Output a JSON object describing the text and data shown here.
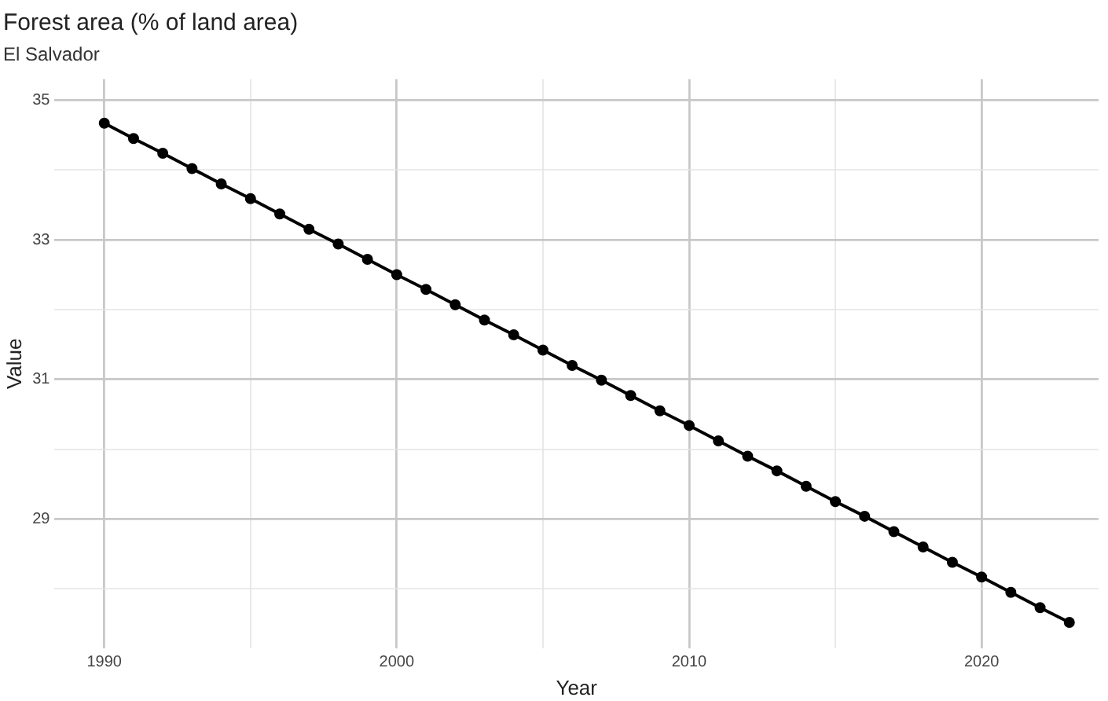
{
  "chart_data": {
    "type": "line",
    "title": "Forest area (% of land area)",
    "subtitle": "El Salvador",
    "xlabel": "Year",
    "ylabel": "Value",
    "x": [
      1990,
      1991,
      1992,
      1993,
      1994,
      1995,
      1996,
      1997,
      1998,
      1999,
      2000,
      2001,
      2002,
      2003,
      2004,
      2005,
      2006,
      2007,
      2008,
      2009,
      2010,
      2011,
      2012,
      2013,
      2014,
      2015,
      2016,
      2017,
      2018,
      2019,
      2020,
      2021,
      2022,
      2023
    ],
    "series": [
      {
        "color": "#000000",
        "values": [
          34.67,
          34.45,
          34.24,
          34.02,
          33.8,
          33.59,
          33.37,
          33.15,
          32.94,
          32.72,
          32.5,
          32.29,
          32.07,
          31.85,
          31.64,
          31.42,
          31.2,
          30.99,
          30.77,
          30.55,
          30.34,
          30.12,
          29.9,
          29.69,
          29.47,
          29.25,
          29.04,
          28.82,
          28.6,
          28.38,
          28.17,
          27.95,
          27.73,
          27.52
        ]
      }
    ],
    "xlim": [
      1988.3,
      2024
    ],
    "ylim": [
      27.15,
      35.3
    ],
    "xticks": [
      1990,
      {
        "value": 1995,
        "label": null
      },
      2000,
      {
        "value": 2005,
        "label": null
      },
      2010,
      {
        "value": 2015,
        "label": null
      },
      2020
    ],
    "yticks": [
      {
        "value": 28,
        "label": null
      },
      29,
      {
        "value": 30,
        "label": null
      },
      31,
      {
        "value": 32,
        "label": null
      },
      33,
      {
        "value": 34,
        "label": null
      },
      35
    ],
    "grid": true,
    "legend": false,
    "marker": "circle",
    "line_style": "solid"
  }
}
